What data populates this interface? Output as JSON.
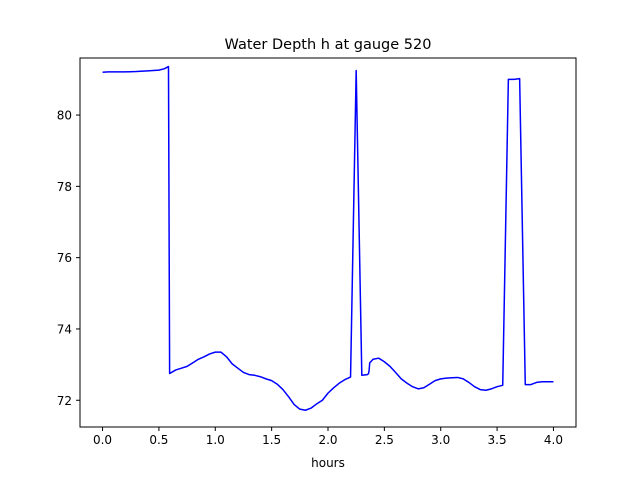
{
  "chart_data": {
    "type": "line",
    "title": "Water Depth h at gauge 520",
    "xlabel": "hours",
    "ylabel": "",
    "xlim": [
      -0.2,
      4.2
    ],
    "ylim": [
      71.25,
      81.6
    ],
    "xticks": [
      0.0,
      0.5,
      1.0,
      1.5,
      2.0,
      2.5,
      3.0,
      3.5,
      4.0
    ],
    "xtick_labels": [
      "0.0",
      "0.5",
      "1.0",
      "1.5",
      "2.0",
      "2.5",
      "3.0",
      "3.5",
      "4.0"
    ],
    "yticks": [
      72,
      74,
      76,
      78,
      80
    ],
    "ytick_labels": [
      "72",
      "74",
      "76",
      "78",
      "80"
    ],
    "grid": false,
    "legend": "none",
    "series": [
      {
        "color": "#0000ff",
        "x": [
          0.0,
          0.05,
          0.1,
          0.2,
          0.3,
          0.4,
          0.5,
          0.55,
          0.585,
          0.595,
          0.6,
          0.65,
          0.7,
          0.75,
          0.8,
          0.85,
          0.9,
          0.95,
          1.0,
          1.05,
          1.1,
          1.15,
          1.2,
          1.25,
          1.3,
          1.35,
          1.4,
          1.45,
          1.5,
          1.55,
          1.6,
          1.65,
          1.7,
          1.75,
          1.8,
          1.85,
          1.9,
          1.95,
          2.0,
          2.05,
          2.1,
          2.15,
          2.2,
          2.25,
          2.3,
          2.35,
          2.36,
          2.365,
          2.37,
          2.4,
          2.45,
          2.5,
          2.55,
          2.6,
          2.65,
          2.7,
          2.75,
          2.8,
          2.85,
          2.9,
          2.95,
          3.0,
          3.05,
          3.1,
          3.15,
          3.2,
          3.25,
          3.3,
          3.35,
          3.4,
          3.45,
          3.5,
          3.55,
          3.6,
          3.65,
          3.7,
          3.75,
          3.8,
          3.85,
          3.9,
          3.91,
          3.915,
          3.93,
          3.935,
          3.95,
          4.0
        ],
        "y": [
          81.2,
          81.21,
          81.21,
          81.21,
          81.22,
          81.24,
          81.26,
          81.3,
          81.36,
          72.75,
          72.76,
          72.85,
          72.9,
          72.95,
          73.05,
          73.15,
          73.22,
          73.3,
          73.35,
          73.35,
          73.22,
          73.02,
          72.9,
          72.78,
          72.72,
          72.7,
          72.66,
          72.6,
          72.55,
          72.45,
          72.3,
          72.1,
          71.88,
          71.75,
          71.72,
          71.78,
          71.9,
          72.0,
          72.2,
          72.35,
          72.48,
          72.58,
          72.65,
          81.25,
          72.7,
          72.72,
          72.75,
          72.85,
          73.05,
          73.15,
          73.18,
          73.08,
          72.95,
          72.78,
          72.6,
          72.48,
          72.38,
          72.32,
          72.35,
          72.45,
          72.55,
          72.6,
          72.62,
          72.63,
          72.64,
          72.6,
          72.5,
          72.38,
          72.3,
          72.28,
          72.32,
          72.38,
          72.42,
          81.0,
          81.0,
          81.02,
          72.44,
          72.44,
          72.5,
          72.52,
          72.52,
          72.52,
          72.52,
          72.52,
          72.52,
          72.52
        ]
      }
    ]
  }
}
